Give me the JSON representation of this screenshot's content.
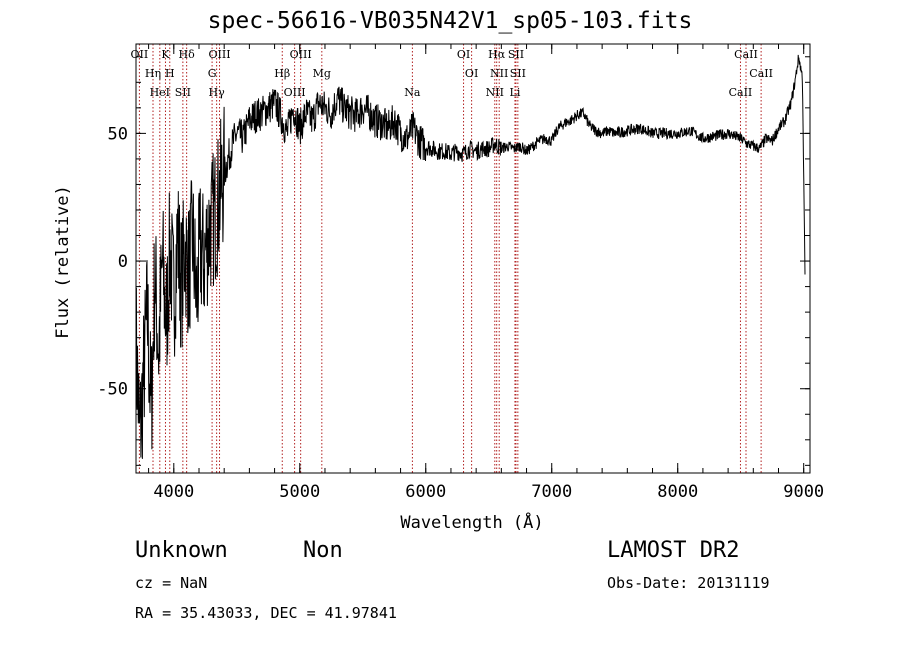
{
  "title": "spec-56616-VB035N42V1_sp05-103.fits",
  "info": {
    "class": "Unknown",
    "subclass": "Non",
    "cz": "cz = NaN",
    "radec": "RA =  35.43033, DEC =  41.97841",
    "survey": "LAMOST DR2",
    "obsdate": "Obs-Date: 20131119"
  },
  "colors": {
    "line": "#000000",
    "marker": "#b22222",
    "background": "#ffffff"
  },
  "chart_data": {
    "type": "line",
    "title": "spec-56616-VB035N42V1_sp05-103.fits",
    "xlabel": "Wavelength (Å)",
    "ylabel": "Flux (relative)",
    "xlim": [
      3700,
      9050
    ],
    "ylim": [
      -83,
      85
    ],
    "xticks": [
      4000,
      5000,
      6000,
      7000,
      8000,
      9000
    ],
    "yticks": [
      -50,
      0,
      50
    ],
    "grid": false,
    "series": [
      {
        "x": [
          3700,
          3730,
          3760,
          3790,
          3820,
          3850,
          3880,
          3910,
          3940,
          3970,
          4000,
          4030,
          4060,
          4090,
          4120,
          4150,
          4180,
          4210,
          4240,
          4270,
          4300,
          4340,
          4380,
          4420,
          4460,
          4500,
          4550,
          4600,
          4650,
          4700,
          4750,
          4800,
          4850,
          4900,
          4950,
          5000,
          5050,
          5100,
          5150,
          5200,
          5250,
          5300,
          5350,
          5400,
          5450,
          5500,
          5550,
          5600,
          5650,
          5700,
          5750,
          5800,
          5850,
          5900,
          5950,
          6000,
          6050,
          6100,
          6150,
          6200,
          6250,
          6300,
          6350,
          6400,
          6450,
          6500,
          6550,
          6600,
          6650,
          6700,
          6750,
          6800,
          6850,
          6900,
          6950,
          7000,
          7050,
          7100,
          7150,
          7200,
          7250,
          7300,
          7350,
          7400,
          7450,
          7500,
          7600,
          7700,
          7800,
          7900,
          8000,
          8100,
          8200,
          8300,
          8400,
          8500,
          8550,
          8600,
          8650,
          8700,
          8750,
          8800,
          8850,
          8900,
          8930,
          8960,
          8990,
          9010
        ],
        "y": [
          -30,
          -70,
          -45,
          -20,
          -60,
          -5,
          -35,
          0,
          -25,
          5,
          -15,
          10,
          -10,
          5,
          -5,
          10,
          -15,
          5,
          0,
          10,
          15,
          20,
          30,
          38,
          45,
          50,
          48,
          55,
          57,
          58,
          60,
          62,
          57,
          50,
          60,
          52,
          58,
          55,
          62,
          60,
          58,
          64,
          60,
          58,
          57,
          60,
          58,
          55,
          54,
          52,
          55,
          50,
          48,
          52,
          47,
          45,
          44,
          43,
          43,
          42,
          43,
          42,
          44,
          43,
          44,
          44,
          46,
          44,
          45,
          44,
          45,
          43,
          45,
          47,
          48,
          47,
          52,
          54,
          55,
          57,
          58,
          53,
          51,
          50,
          51,
          50,
          51,
          52,
          50,
          50,
          50,
          51,
          48,
          49,
          50,
          48,
          46,
          45,
          44,
          48,
          47,
          52,
          55,
          62,
          70,
          80,
          72,
          -5
        ]
      }
    ],
    "lines": [
      {
        "label": "OII",
        "x": 3727
      },
      {
        "label": "Hη",
        "x": 3835
      },
      {
        "label": "HeI",
        "x": 3889
      },
      {
        "label": "K",
        "x": 3934
      },
      {
        "label": "H",
        "x": 3968
      },
      {
        "label": "SII",
        "x": 4072
      },
      {
        "label": "Hδ",
        "x": 4102
      },
      {
        "label": "G",
        "x": 4304
      },
      {
        "label": "Hγ",
        "x": 4340
      },
      {
        "label": "OIII",
        "x": 4363
      },
      {
        "label": "Hβ",
        "x": 4861
      },
      {
        "label": "OIII",
        "x": 4959
      },
      {
        "label": "OIII",
        "x": 5007
      },
      {
        "label": "Mg",
        "x": 5175
      },
      {
        "label": "Na",
        "x": 5894
      },
      {
        "label": "OI",
        "x": 6300
      },
      {
        "label": "OI",
        "x": 6364
      },
      {
        "label": "NII",
        "x": 6548
      },
      {
        "label": "Hα",
        "x": 6563
      },
      {
        "label": "NII",
        "x": 6583
      },
      {
        "label": "Li",
        "x": 6708
      },
      {
        "label": "SII",
        "x": 6716
      },
      {
        "label": "SII",
        "x": 6731
      },
      {
        "label": "CaII",
        "x": 8498
      },
      {
        "label": "CaII",
        "x": 8542
      },
      {
        "label": "CaII",
        "x": 8662
      }
    ]
  }
}
